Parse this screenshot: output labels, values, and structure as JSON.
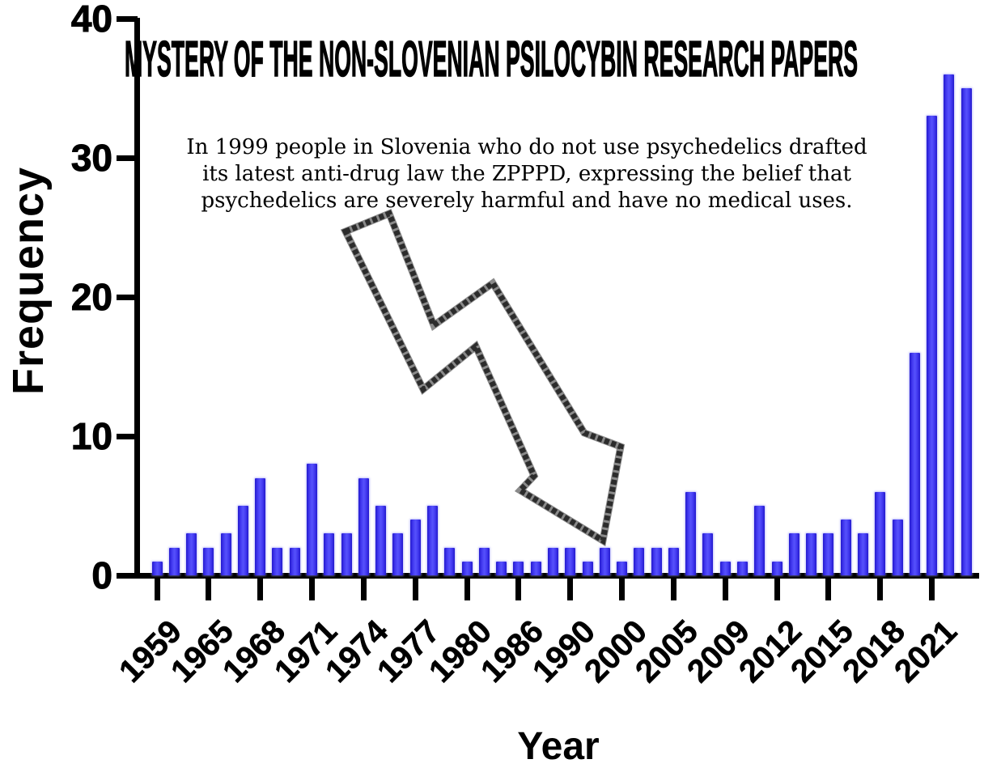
{
  "chart_data": {
    "type": "bar",
    "title": "MYSTERY OF THE NON-SLOVENIAN PSILOCYBIN RESEARCH PAPERS",
    "xlabel": "Year",
    "ylabel": "Frequency",
    "ylim": [
      0,
      40
    ],
    "yticks": [
      0,
      10,
      20,
      30,
      40
    ],
    "grid": false,
    "legend": "none",
    "bar_color": "#3a31ee",
    "axis_color": "#000000",
    "values": [
      1,
      2,
      3,
      2,
      3,
      5,
      7,
      2,
      2,
      8,
      3,
      3,
      7,
      5,
      3,
      4,
      5,
      2,
      1,
      2,
      1,
      1,
      1,
      2,
      2,
      1,
      2,
      1,
      2,
      2,
      2,
      6,
      3,
      1,
      1,
      5,
      1,
      3,
      3,
      3,
      4,
      3,
      6,
      4,
      16,
      33,
      36,
      35
    ],
    "tick_every": 3,
    "tick_labels": [
      "1959",
      "1965",
      "1968",
      "1971",
      "1974",
      "1977",
      "1980",
      "1986",
      "1990",
      "2000",
      "2005",
      "2009",
      "2012",
      "2015",
      "2018",
      "2021"
    ],
    "x_tick_label_rotation_deg": 45,
    "annotation_lines": [
      "In 1999 people in Slovenia who do not use psychedelics drafted",
      "its latest anti-drug law the ZPPPD, expressing the belief that",
      "psychedelics are severely harmful and have no medical uses."
    ],
    "annotation_symbol": "jagged-downward-trend-arrow",
    "arrow_outline_color": "#3e3e3e",
    "arrow_fill_color": "#ffffff"
  }
}
